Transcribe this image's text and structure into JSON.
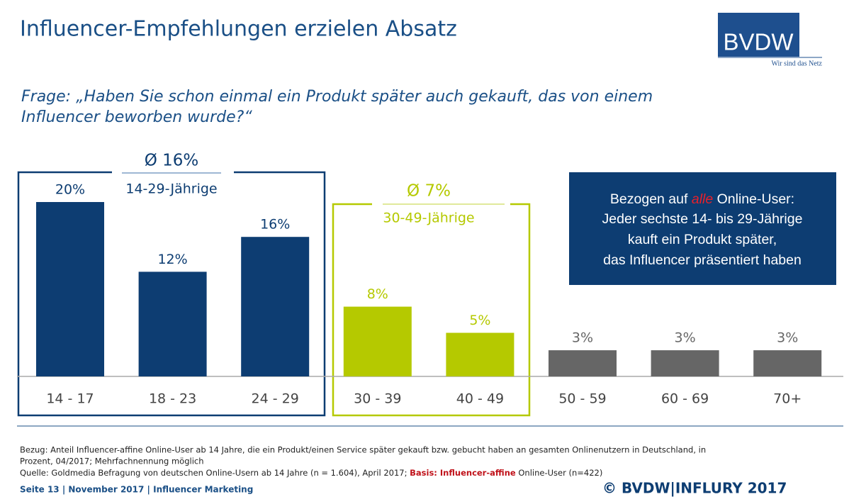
{
  "header": {
    "title": "Influencer-Empfehlungen erzielen Absatz",
    "logo": "BVDW",
    "slogan": "Wir sind das Netz",
    "question_lines": [
      "Frage: „Haben Sie schon einmal ein Produkt später auch gekauft, das von einem",
      "Influencer beworben wurde?“"
    ]
  },
  "chart_data": {
    "type": "bar",
    "categories": [
      "14 - 17",
      "18 - 23",
      "24 - 29",
      "30 - 39",
      "40 - 49",
      "50 - 59",
      "60 - 69",
      "70+"
    ],
    "values": [
      20,
      12,
      16,
      8,
      5,
      3,
      3,
      3
    ],
    "value_labels": [
      "20%",
      "12%",
      "16%",
      "8%",
      "5%",
      "3%",
      "3%",
      "3%"
    ],
    "colors": [
      "#0d3d72",
      "#0d3d72",
      "#0d3d72",
      "#b5c900",
      "#b5c900",
      "#666666",
      "#666666",
      "#666666"
    ]
  },
  "groups": [
    {
      "average": "Ø 16%",
      "label": "14-29-Jährige"
    },
    {
      "average": "Ø 7%",
      "label": "30-49-Jährige"
    }
  ],
  "callout": {
    "line1": [
      "Bezogen auf ",
      "alle",
      " Online-User:"
    ],
    "lines": [
      "Jeder sechste 14- bis 29-Jährige",
      "kauft ein Produkt später,",
      "das Influencer präsentiert haben"
    ]
  },
  "footnotes": {
    "bezug": [
      "Bezug: Anteil Influencer-affine Online-User ab 14 Jahre, die ein Produkt/einen Service später gekauft bzw. gebucht haben an gesamten Onlinenutzern in Deutschland, in",
      "Prozent, 04/2017; Mehrfachnennung möglich"
    ],
    "quelle": [
      "Quelle: Goldmedia Befragung von deutschen Online-Usern ab 14 Jahre (n = 1.604), April 2017; ",
      "Basis: Influencer-affine",
      " Online-User (n=422)"
    ]
  },
  "footer": {
    "left": "Seite 13 | November 2017 | Influencer Marketing",
    "right": "© BVDW|INFLURY 2017"
  }
}
